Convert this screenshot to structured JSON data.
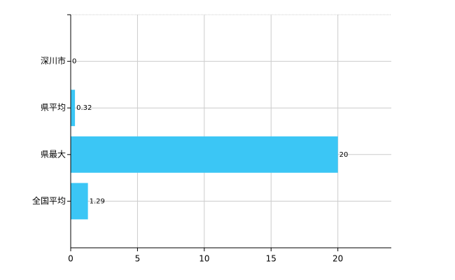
{
  "chart_data": {
    "type": "bar",
    "orientation": "horizontal",
    "categories": [
      "深川市",
      "県平均",
      "県最大",
      "全国平均"
    ],
    "values": [
      0,
      0.32,
      20,
      1.29
    ],
    "color": "#3bc6f5",
    "xlim": [
      0,
      24
    ],
    "xticks": [
      0,
      5,
      10,
      15,
      20
    ],
    "grid": true
  }
}
